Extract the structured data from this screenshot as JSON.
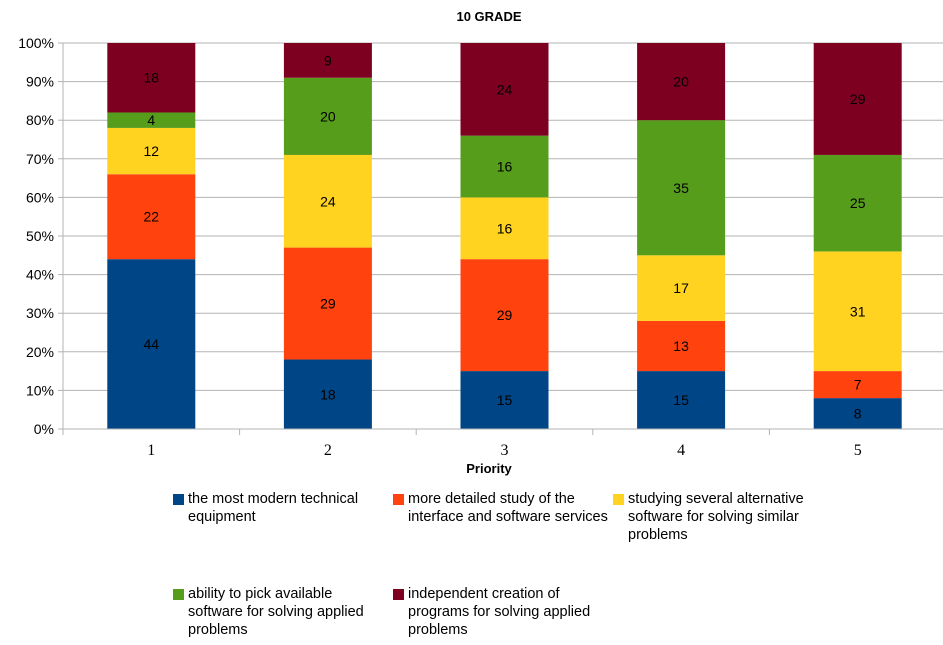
{
  "chart_data": {
    "type": "bar",
    "stacked": "percent",
    "title": "10 GRADE",
    "xlabel": "Priority",
    "ylabel": "",
    "categories": [
      "1",
      "2",
      "3",
      "4",
      "5"
    ],
    "ylim": [
      0,
      100
    ],
    "ytick_labels": [
      "0%",
      "10%",
      "20%",
      "30%",
      "40%",
      "50%",
      "60%",
      "70%",
      "80%",
      "90%",
      "100%"
    ],
    "grid": true,
    "legend_position": "bottom",
    "series": [
      {
        "name": "the most modern technical equipment",
        "color": "#004586",
        "values": [
          44,
          18,
          15,
          15,
          8
        ]
      },
      {
        "name": "more detailed study of the interface and software services",
        "color": "#ff420e",
        "values": [
          22,
          29,
          29,
          13,
          7
        ]
      },
      {
        "name": "studying several alternative software for solving similar problems",
        "color": "#ffd320",
        "values": [
          12,
          24,
          16,
          17,
          31
        ]
      },
      {
        "name": "ability to pick available software for solving applied problems",
        "color": "#579d1c",
        "values": [
          4,
          20,
          16,
          35,
          25
        ]
      },
      {
        "name": "independent creation of programs for solving applied problems",
        "color": "#7e0021",
        "values": [
          18,
          9,
          24,
          20,
          29
        ]
      }
    ]
  }
}
